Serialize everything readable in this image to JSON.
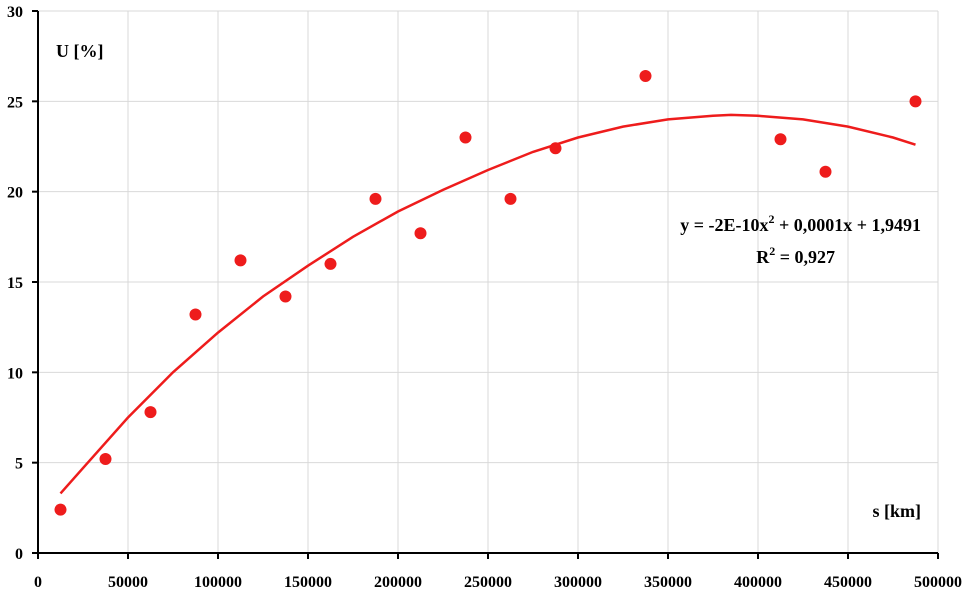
{
  "chart_data": {
    "type": "scatter",
    "title": "",
    "xlabel": "s [km]",
    "ylabel": "U [%]",
    "xlim": [
      0,
      500000
    ],
    "ylim": [
      0,
      30
    ],
    "x_ticks": [
      "0",
      "50000",
      "100000",
      "150000",
      "200000",
      "250000",
      "300000",
      "350000",
      "400000",
      "450000",
      "500000"
    ],
    "y_ticks": [
      "0",
      "5",
      "10",
      "15",
      "20",
      "25",
      "30"
    ],
    "x_tick_values": [
      0,
      50000,
      100000,
      150000,
      200000,
      250000,
      300000,
      350000,
      400000,
      450000,
      500000
    ],
    "y_tick_values": [
      0,
      5,
      10,
      15,
      20,
      25,
      30
    ],
    "grid": true,
    "series": [
      {
        "type": "scatter",
        "color": "#ee1c1c",
        "x": [
          12500,
          37500,
          62500,
          87500,
          112500,
          137500,
          162500,
          187500,
          212500,
          237500,
          262500,
          287500,
          337500,
          412500,
          437500,
          487500
        ],
        "y": [
          2.4,
          5.2,
          7.8,
          13.2,
          16.2,
          14.2,
          16.0,
          19.6,
          17.7,
          23.0,
          19.6,
          22.4,
          26.4,
          22.9,
          21.1,
          25.0
        ]
      },
      {
        "type": "line",
        "color": "#ee1c1c",
        "x": [
          12500,
          25000,
          50000,
          75000,
          100000,
          125000,
          150000,
          175000,
          200000,
          225000,
          250000,
          275000,
          300000,
          325000,
          350000,
          375000,
          385000,
          400000,
          425000,
          450000,
          475000,
          487500
        ],
        "y": [
          3.3,
          4.7,
          7.5,
          10.0,
          12.2,
          14.2,
          15.9,
          17.5,
          18.9,
          20.1,
          21.2,
          22.2,
          23.0,
          23.6,
          24.0,
          24.2,
          24.25,
          24.2,
          24.0,
          23.6,
          23.0,
          22.6
        ]
      }
    ],
    "annotations": {
      "equation": {
        "prefix": "y = -2E-10x",
        "sup": "2",
        "suffix": " + 0,0001x + 1,9491"
      },
      "r_squared": {
        "prefix": "R",
        "sup": "2",
        "suffix": " = 0,927"
      }
    }
  }
}
